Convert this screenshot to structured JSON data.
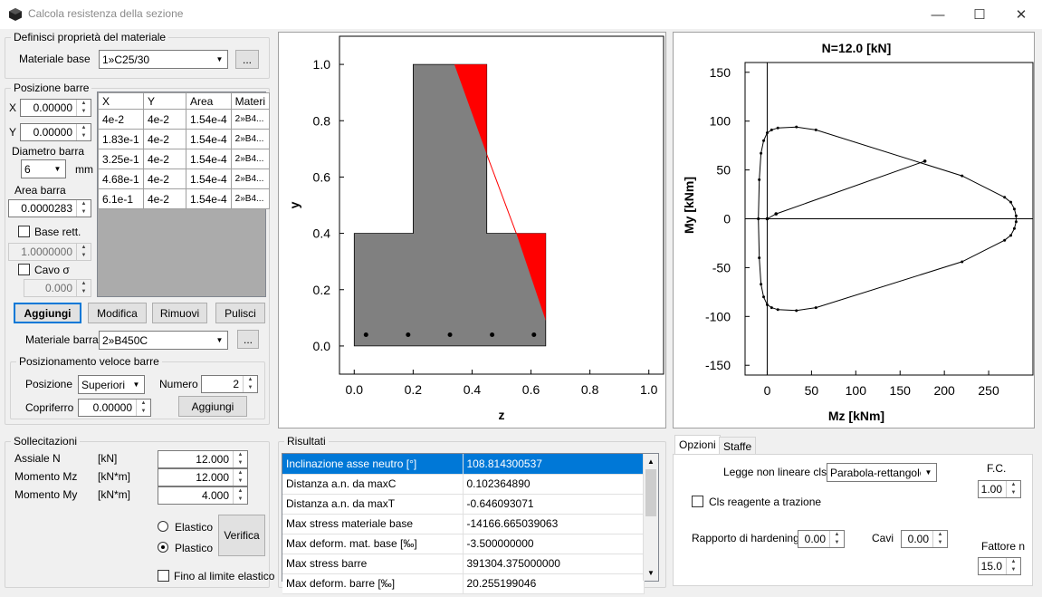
{
  "window": {
    "title": "Calcola resistenza della sezione",
    "min": "—",
    "max": "☐",
    "close": "✕"
  },
  "material": {
    "group": "Definisci proprietà del materiale",
    "label": "Materiale base",
    "value": "1»C25/30",
    "browse": "..."
  },
  "bars": {
    "group": "Posizione barre",
    "x_label": "X",
    "x_value": "0.00000",
    "y_label": "Y",
    "y_value": "0.00000",
    "diam_label": "Diametro barra",
    "diam_value": "6",
    "diam_unit": "mm",
    "area_label": "Area barra",
    "area_value": "0.0000283",
    "base_rett_label": "Base rett.",
    "base_rett_value": "1.0000000",
    "cavo_label": "Cavo σ",
    "cavo_value": "0.000",
    "columns": [
      "X",
      "Y",
      "Area",
      "Materi"
    ],
    "rows": [
      [
        "4e-2",
        "4e-2",
        "1.54e-4",
        "2»B4..."
      ],
      [
        "1.83e-1",
        "4e-2",
        "1.54e-4",
        "2»B4..."
      ],
      [
        "3.25e-1",
        "4e-2",
        "1.54e-4",
        "2»B4..."
      ],
      [
        "4.68e-1",
        "4e-2",
        "1.54e-4",
        "2»B4..."
      ],
      [
        "6.1e-1",
        "4e-2",
        "1.54e-4",
        "2»B4..."
      ]
    ],
    "btn_add": "Aggiungi",
    "btn_edit": "Modifica",
    "btn_remove": "Rimuovi",
    "btn_clear": "Pulisci",
    "mat_label": "Materiale barra",
    "mat_value": "2»B450C",
    "browse": "..."
  },
  "quick": {
    "group": "Posizionamento veloce barre",
    "pos_label": "Posizione",
    "pos_value": "Superiori",
    "num_label": "Numero",
    "num_value": "2",
    "cover_label": "Copriferro",
    "cover_value": "0.00000",
    "add": "Aggiungi"
  },
  "loads": {
    "group": "Sollecitazioni",
    "rows": [
      {
        "label": "Assiale N",
        "unit": "[kN]",
        "value": "12.000"
      },
      {
        "label": "Momento Mz",
        "unit": "[kN*m]",
        "value": "12.000"
      },
      {
        "label": "Momento My",
        "unit": "[kN*m]",
        "value": "4.000"
      }
    ],
    "elastic": "Elastico",
    "plastic": "Plastico",
    "verify": "Verifica",
    "limit": "Fino al limite elastico"
  },
  "results": {
    "group": "Risultati",
    "rows": [
      [
        "Inclinazione asse neutro [°]",
        "108.814300537"
      ],
      [
        "Distanza a.n. da maxC",
        "0.102364890"
      ],
      [
        "Distanza a.n. da maxT",
        "-0.646093071"
      ],
      [
        "Max stress materiale base",
        "-14166.665039063"
      ],
      [
        "Max deform. mat. base [‰]",
        "-3.500000000"
      ],
      [
        "Max stress barre",
        "391304.375000000"
      ],
      [
        "Max deform. barre [‰]",
        "20.255199046"
      ]
    ]
  },
  "options": {
    "tabs": [
      "Opzioni",
      "Staffe"
    ],
    "law_label": "Legge non lineare cls",
    "law_value": "Parabola-rettangolo",
    "fc_label": "F.C.",
    "fc_value": "1.00",
    "tension_label": "Cls reagente a trazione",
    "hard_label": "Rapporto di hardening",
    "hard_value": "0.00",
    "cavi_label": "Cavi",
    "cavi_value": "0.00",
    "n_label": "Fattore n",
    "n_value": "15.0"
  },
  "chart_data": [
    {
      "type": "scatter",
      "title": "",
      "xlabel": "z",
      "ylabel": "y",
      "xlim": [
        -0.05,
        1.05
      ],
      "ylim": [
        -0.1,
        1.1
      ],
      "xticks": [
        "0.0",
        "0.2",
        "0.4",
        "0.6",
        "0.8",
        "1.0"
      ],
      "yticks": [
        "0.0",
        "0.2",
        "0.4",
        "0.6",
        "0.8",
        "1.0"
      ],
      "section": [
        [
          0,
          0
        ],
        [
          0.65,
          0
        ],
        [
          0.65,
          0.4
        ],
        [
          0.45,
          0.4
        ],
        [
          0.45,
          1.0
        ],
        [
          0.2,
          1.0
        ],
        [
          0.2,
          0.4
        ],
        [
          0,
          0.4
        ]
      ],
      "compression_zone": [
        [
          0.34,
          1.0
        ],
        [
          0.45,
          1.0
        ],
        [
          0.45,
          0.68
        ]
      ],
      "compression_zone_2": [
        [
          0.55,
          0.4
        ],
        [
          0.65,
          0.4
        ],
        [
          0.65,
          0.09
        ]
      ],
      "neutral_axis": [
        [
          0.45,
          0.68
        ],
        [
          0.55,
          0.4
        ]
      ],
      "gray_split_line": [
        [
          0.34,
          1.0
        ],
        [
          0.65,
          0.09
        ]
      ],
      "bars": {
        "x": [
          0.04,
          0.183,
          0.325,
          0.468,
          0.61
        ],
        "y": [
          0.04,
          0.04,
          0.04,
          0.04,
          0.04
        ]
      },
      "colors": {
        "section": "#808080",
        "compression": "#ff0000"
      }
    },
    {
      "type": "line",
      "title": "N=12.0 [kN]",
      "xlabel": "Mz [kNm]",
      "ylabel": "My [kNm]",
      "xlim": [
        -25,
        300
      ],
      "ylim": [
        -160,
        160
      ],
      "xticks": [
        0,
        50,
        100,
        150,
        200,
        250
      ],
      "yticks": [
        150,
        100,
        50,
        0,
        -50,
        -100,
        -150
      ],
      "domain": [
        [
          -10,
          0
        ],
        [
          -9,
          40
        ],
        [
          -7,
          67
        ],
        [
          -4,
          80
        ],
        [
          0,
          88
        ],
        [
          5,
          91
        ],
        [
          12,
          93
        ],
        [
          33,
          94
        ],
        [
          55,
          91
        ],
        [
          220,
          44
        ],
        [
          268,
          22
        ],
        [
          275,
          17
        ],
        [
          279,
          10
        ],
        [
          281,
          3
        ],
        [
          281,
          -3
        ],
        [
          279,
          -10
        ],
        [
          275,
          -17
        ],
        [
          268,
          -22
        ],
        [
          220,
          -44
        ],
        [
          55,
          -91
        ],
        [
          33,
          -94
        ],
        [
          12,
          -93
        ],
        [
          5,
          -91
        ],
        [
          0,
          -88
        ],
        [
          -4,
          -80
        ],
        [
          -7,
          -67
        ],
        [
          -9,
          -40
        ],
        [
          -10,
          0
        ]
      ],
      "load_path": [
        [
          0,
          0
        ],
        [
          10,
          5
        ],
        [
          178,
          59
        ]
      ]
    }
  ]
}
